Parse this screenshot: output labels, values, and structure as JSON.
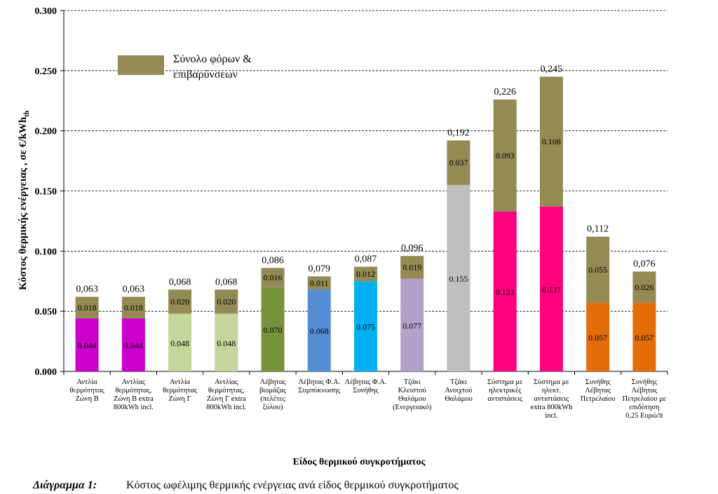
{
  "chart_data": {
    "type": "bar",
    "stacked": true,
    "categories": [
      "Αντλία θερμότητας Ζώνη Β",
      "Αντλίας θερμότητας, Ζώνη Β extra 800kWh incl.",
      "Αντλία θερμότητας Ζώνη Γ",
      "Αντλίας θερμότητας, Ζώνη Γ extra 800kWh incl.",
      "Λέβητας βιομάζας (πελέτες ξύλου)",
      "Λέβητας Φ.Α. Συμπύκνωσης",
      "Λέβητας Φ.Α. Συνήθης",
      "Τζάκι Κλειστού Θαλάμου (Ενεργειακό)",
      "Τζάκι Ανοιχτού Θαλάμου",
      "Σύστημα με ηλεκτρικές αντιστάσεις",
      "Σύστημα με ηλεκτ. αντιστάσεις extra 800kWh incl.",
      "Συνήθης Λέβητας Πετρελαίου",
      "Συνήθης Λέβητας Πετρελαίου με επιδότηση 0,25 Ευρώ/lt"
    ],
    "category_lines": [
      [
        "Αντλία",
        "θερμότητας",
        "Ζώνη Β"
      ],
      [
        "Αντλίας",
        "θερμότητας,",
        "Ζώνη Β extra",
        "800kWh incl."
      ],
      [
        "Αντλία",
        "θερμότητας",
        "Ζώνη Γ"
      ],
      [
        "Αντλίας",
        "θερμότητας,",
        "Ζώνη Γ extra",
        "800kWh incl."
      ],
      [
        "Λέβητας",
        "βιομάζας",
        "(πελέτες",
        "ξύλου)"
      ],
      [
        "Λέβητας Φ.Α.",
        "Συμπύκνωσης"
      ],
      [
        "Λέβητας Φ.Α.",
        "Συνήθης"
      ],
      [
        "Τζάκι",
        "Κλειστού",
        "Θαλάμου",
        "(Ενεργειακό)"
      ],
      [
        "Τζάκι",
        "Ανοιχτού",
        "Θαλάμου"
      ],
      [
        "Σύστημα με",
        "ηλεκτρικές",
        "αντιστάσεις"
      ],
      [
        "Σύστημα με",
        "ηλεκτ.",
        "αντιστάσεις",
        "extra 800kWh",
        "incl."
      ],
      [
        "Συνήθης",
        "Λέβητας",
        "Πετρελαίου"
      ],
      [
        "Συνήθης",
        "Λέβητας",
        "Πετρελαίου με",
        "επιδότηση",
        "0,25 Ευρώ/lt"
      ]
    ],
    "base_values": [
      0.044,
      0.044,
      0.048,
      0.048,
      0.07,
      0.068,
      0.075,
      0.077,
      0.155,
      0.133,
      0.137,
      0.057,
      0.057
    ],
    "base_labels": [
      "0.044",
      "0.044",
      "0.048",
      "0.048",
      "0.070",
      "0.068",
      "0.075",
      "0.077",
      "0.155",
      "0.133",
      "0.137",
      "0.057",
      "0.057"
    ],
    "base_colors": [
      "#cc00cc",
      "#cc00cc",
      "#c3d69b",
      "#c3d69b",
      "#76923c",
      "#558ed5",
      "#00b0f0",
      "#b3a2c7",
      "#bfbfbf",
      "#ff0080",
      "#ff0080",
      "#e46c0a",
      "#e46c0a"
    ],
    "tax_series": {
      "name": "Σύνολο φόρων & επιβαρύνσεων",
      "color": "#948a54",
      "values": [
        0.018,
        0.018,
        0.02,
        0.02,
        0.016,
        0.011,
        0.012,
        0.019,
        0.037,
        0.093,
        0.108,
        0.055,
        0.026
      ],
      "labels": [
        "0.018",
        "0.018",
        "0.020",
        "0.020",
        "0.016",
        "0.011",
        "0.012",
        "0.019",
        "0.037",
        "0.093",
        "0.108",
        "0.055",
        "0.026"
      ]
    },
    "totals": [
      0.063,
      0.063,
      0.068,
      0.068,
      0.086,
      0.079,
      0.087,
      0.096,
      0.192,
      0.226,
      0.245,
      0.112,
      0.076
    ],
    "total_labels": [
      "0,063",
      "0,063",
      "0,068",
      "0,068",
      "0,086",
      "0,079",
      "0,087",
      "0,096",
      "0,192",
      "0,226",
      "0,245",
      "0,112",
      "0,076"
    ],
    "ylim": [
      0,
      0.3
    ],
    "yticks": [
      "0.000",
      "0.050",
      "0.100",
      "0.150",
      "0.200",
      "0.250",
      "0.300"
    ],
    "ylabel": "Κόστος θερμικής ενέργειας , σε  €/kWh",
    "ylabel_sub": "th",
    "xlabel": "Είδος θερμικού συγκροτήματος",
    "grid": true,
    "legend_position": "top-left"
  },
  "caption": {
    "label": "Διάγραμμα 1:",
    "text": "Κόστος ωφέλιμης θερμικής ενέργειας ανά είδος θερμικού συγκροτήματος"
  }
}
